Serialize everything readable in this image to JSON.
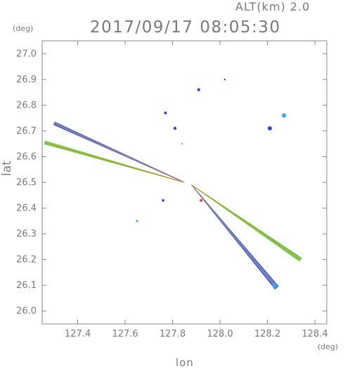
{
  "header": {
    "altitude_label": "ALT(km)  2.0",
    "datetime": "2017/09/17 08:05:30"
  },
  "chart_data": {
    "type": "scatter",
    "title": "2017/09/17 08:05:30",
    "xlabel": "lon",
    "ylabel": "lat",
    "xunit": "(deg)",
    "yunit": "(deg)",
    "xlim": [
      127.25,
      128.45
    ],
    "ylim": [
      25.95,
      27.05
    ],
    "xticks": [
      127.4,
      127.6,
      127.8,
      128.0,
      128.2,
      128.4
    ],
    "yticks": [
      26.0,
      26.1,
      26.2,
      26.3,
      26.4,
      26.5,
      26.6,
      26.7,
      26.8,
      26.9,
      27.0
    ],
    "grid": false,
    "colors": {
      "axis": "#888888",
      "text": "#7a7a7a"
    },
    "echo_bands": [
      {
        "from": [
          127.3,
          26.73
        ],
        "to": [
          127.85,
          26.5
        ],
        "layers": [
          {
            "color": "#3344dd",
            "width_start": 5,
            "width_end": 1
          },
          {
            "color": "#44aaee",
            "width_start": 3,
            "width_end": 1
          },
          {
            "color": "#ee4422",
            "width_start": 1,
            "width_end": 0.6
          }
        ]
      },
      {
        "from": [
          127.26,
          26.655
        ],
        "to": [
          127.85,
          26.5
        ],
        "layers": [
          {
            "color": "#22cc55",
            "width_start": 5,
            "width_end": 1
          },
          {
            "color": "#aaee33",
            "width_start": 3,
            "width_end": 1
          },
          {
            "color": "#ee4422",
            "width_start": 1,
            "width_end": 0.6
          }
        ]
      },
      {
        "from": [
          127.88,
          26.49
        ],
        "to": [
          128.24,
          26.09
        ],
        "layers": [
          {
            "color": "#3344dd",
            "width_start": 1,
            "width_end": 7
          },
          {
            "color": "#44aaee",
            "width_start": 1,
            "width_end": 4
          },
          {
            "color": "#ee4422",
            "width_start": 0.6,
            "width_end": 1
          }
        ]
      },
      {
        "from": [
          127.88,
          26.49
        ],
        "to": [
          128.34,
          26.2
        ],
        "layers": [
          {
            "color": "#22cc55",
            "width_start": 1,
            "width_end": 6
          },
          {
            "color": "#aaee33",
            "width_start": 1,
            "width_end": 3
          },
          {
            "color": "#ee4422",
            "width_start": 0.6,
            "width_end": 1
          }
        ]
      }
    ],
    "echo_blobs": [
      {
        "lon": 127.91,
        "lat": 26.86,
        "size": 2.2,
        "color": "#3344dd"
      },
      {
        "lon": 128.02,
        "lat": 26.9,
        "size": 1.2,
        "color": "#3344dd"
      },
      {
        "lon": 127.77,
        "lat": 26.77,
        "size": 2.0,
        "color": "#3344dd"
      },
      {
        "lon": 127.81,
        "lat": 26.71,
        "size": 2.2,
        "color": "#3344dd"
      },
      {
        "lon": 128.21,
        "lat": 26.71,
        "size": 3.0,
        "color": "#3344dd"
      },
      {
        "lon": 128.27,
        "lat": 26.76,
        "size": 3.2,
        "color": "#44aaee"
      },
      {
        "lon": 127.76,
        "lat": 26.43,
        "size": 1.8,
        "color": "#3344dd"
      },
      {
        "lon": 127.65,
        "lat": 26.35,
        "size": 1.6,
        "color": "#44aaee"
      },
      {
        "lon": 127.92,
        "lat": 26.43,
        "size": 2.0,
        "color": "#ee4422"
      },
      {
        "lon": 127.84,
        "lat": 26.65,
        "size": 0.8,
        "color": "#3344dd"
      },
      {
        "lon": 128.23,
        "lat": 26.1,
        "size": 3.0,
        "color": "#44aaee"
      }
    ]
  }
}
